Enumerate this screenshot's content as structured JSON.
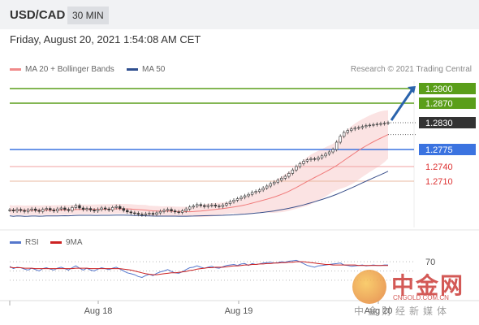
{
  "header": {
    "symbol": "USD/CAD",
    "timeframe": "30 MIN"
  },
  "datetime": "Friday, August 20, 2021 1:54:08 AM CET",
  "legend": [
    {
      "label": "MA 20 + Bollinger Bands",
      "color": "#f08a8a"
    },
    {
      "label": "MA 50",
      "color": "#2f4f8f"
    }
  ],
  "credit": "Research © 2021 Trading Central",
  "rsi_legend": [
    {
      "label": "RSI",
      "color": "#5577cc"
    },
    {
      "label": "9MA",
      "color": "#cc2222"
    }
  ],
  "watermark": {
    "big": "中金网",
    "url": "CNGOLD.COM.CN",
    "tag": "中金财经新媒体"
  },
  "chart_data": [
    {
      "type": "candlestick",
      "x_labels": [
        "Aug 18",
        "Aug 19",
        "Aug 20"
      ],
      "y_unit": "USD/CAD",
      "ylim": [
        1.2615,
        1.2915
      ],
      "current_price": 1.283,
      "levels": [
        {
          "name": "resistance-2",
          "value": 1.29,
          "label": "1.2900",
          "color": "#5a9e1a",
          "box": true
        },
        {
          "name": "resistance-1",
          "value": 1.287,
          "label": "1.2870",
          "color": "#5a9e1a",
          "box": true
        },
        {
          "name": "pivot",
          "value": 1.2775,
          "label": "1.2775",
          "color": "#3b73e0",
          "box": true
        },
        {
          "name": "support-1",
          "value": 1.274,
          "label": "1.2740",
          "color": "#f0a0a0",
          "box": false,
          "text_color": "#d33"
        },
        {
          "name": "support-2",
          "value": 1.271,
          "label": "1.2710",
          "color": "#e8b8a0",
          "box": false,
          "text_color": "#d33"
        }
      ],
      "closes": [
        1.2651,
        1.2649,
        1.2652,
        1.265,
        1.2648,
        1.2651,
        1.2653,
        1.265,
        1.2648,
        1.2652,
        1.2654,
        1.2651,
        1.2649,
        1.2653,
        1.2655,
        1.2652,
        1.265,
        1.2656,
        1.266,
        1.2655,
        1.2652,
        1.2654,
        1.2651,
        1.2649,
        1.2652,
        1.2655,
        1.2653,
        1.2651,
        1.2656,
        1.2658,
        1.2654,
        1.265,
        1.2647,
        1.2645,
        1.2644,
        1.2642,
        1.2641,
        1.2643,
        1.2644,
        1.2642,
        1.2645,
        1.2648,
        1.265,
        1.2652,
        1.2649,
        1.2647,
        1.2646,
        1.2649,
        1.2653,
        1.2657,
        1.2659,
        1.2662,
        1.266,
        1.2658,
        1.266,
        1.2661,
        1.2659,
        1.2658,
        1.2661,
        1.2664,
        1.2668,
        1.2671,
        1.2674,
        1.2677,
        1.268,
        1.2683,
        1.2687,
        1.2689,
        1.2692,
        1.2696,
        1.27,
        1.2705,
        1.2708,
        1.2712,
        1.2716,
        1.272,
        1.2726,
        1.2733,
        1.274,
        1.2746,
        1.2751,
        1.2754,
        1.2756,
        1.2755,
        1.2758,
        1.2762,
        1.2766,
        1.277,
        1.2775,
        1.279,
        1.2802,
        1.281,
        1.2814,
        1.2817,
        1.2819,
        1.282,
        1.2822,
        1.2824,
        1.2825,
        1.2826,
        1.2827,
        1.2828,
        1.2829,
        1.283
      ],
      "projection": {
        "from": 1.2835,
        "to": 1.2905
      }
    },
    {
      "type": "line",
      "title": "RSI",
      "tick_labels": [
        "70"
      ],
      "rsi_ylim": [
        0,
        100
      ],
      "rsi_level": 70,
      "series": [
        {
          "name": "RSI",
          "color": "#5577cc",
          "values": [
            60,
            55,
            58,
            57,
            54,
            52,
            56,
            53,
            50,
            55,
            57,
            54,
            52,
            56,
            58,
            55,
            52,
            57,
            61,
            56,
            52,
            56,
            52,
            50,
            54,
            57,
            55,
            53,
            56,
            58,
            54,
            50,
            46,
            44,
            42,
            38,
            36,
            40,
            43,
            40,
            45,
            48,
            50,
            53,
            49,
            46,
            45,
            48,
            53,
            57,
            58,
            61,
            58,
            56,
            58,
            60,
            57,
            56,
            59,
            62,
            63,
            64,
            62,
            65,
            66,
            62,
            66,
            64,
            65,
            67,
            68,
            69,
            67,
            68,
            70,
            69,
            71,
            72,
            73,
            70,
            66,
            62,
            60,
            58,
            61,
            62,
            63,
            64,
            65,
            66,
            67,
            63,
            62,
            60,
            61,
            62,
            63,
            61,
            62,
            63,
            62,
            62,
            63,
            63
          ]
        },
        {
          "name": "9MA",
          "color": "#cc2222",
          "values": [
            58,
            57,
            57,
            57,
            56,
            56,
            56,
            55,
            55,
            55,
            55,
            55,
            55,
            55,
            55,
            55,
            55,
            55,
            56,
            56,
            56,
            56,
            55,
            55,
            55,
            55,
            55,
            55,
            55,
            55,
            55,
            54,
            53,
            52,
            50,
            48,
            46,
            44,
            43,
            42,
            42,
            43,
            44,
            45,
            46,
            46,
            47,
            48,
            49,
            51,
            52,
            54,
            55,
            56,
            57,
            57,
            58,
            58,
            58,
            59,
            60,
            61,
            61,
            62,
            63,
            63,
            64,
            64,
            65,
            65,
            66,
            66,
            67,
            67,
            68,
            68,
            69,
            69,
            70,
            70,
            70,
            69,
            68,
            67,
            66,
            65,
            64,
            64,
            63,
            63,
            63,
            63,
            63,
            63,
            63,
            62,
            62,
            62,
            62,
            62,
            62,
            62,
            62,
            62
          ]
        }
      ]
    }
  ]
}
